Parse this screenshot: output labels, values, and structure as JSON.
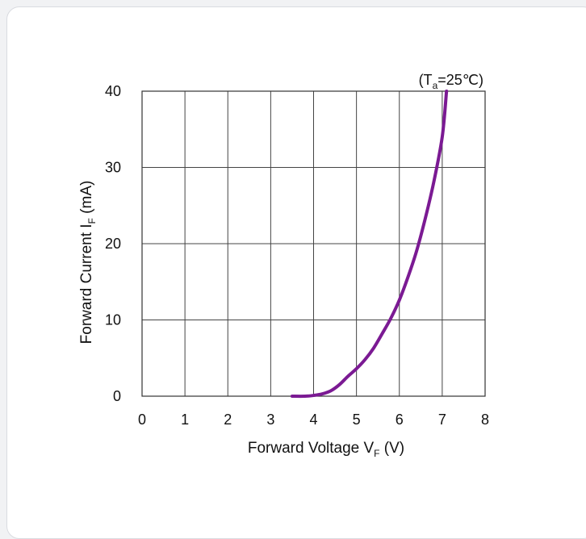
{
  "chart_data": {
    "type": "line",
    "title": "",
    "annotation": {
      "prefix": "(T",
      "sub": "a",
      "suffix": "=25℃)"
    },
    "xlabel": {
      "main": "Forward Voltage V",
      "sub": "F",
      "unit": " (V)"
    },
    "ylabel": {
      "main": "Forward Current I",
      "sub": "F",
      "unit": " (mA)"
    },
    "xlim": [
      0,
      8
    ],
    "ylim": [
      0,
      40
    ],
    "x_ticks": [
      "0",
      "1",
      "2",
      "3",
      "4",
      "5",
      "6",
      "7",
      "8"
    ],
    "y_ticks": [
      "0",
      "10",
      "20",
      "30",
      "40"
    ],
    "grid": true,
    "line_color": "#7b1a93",
    "series": [
      {
        "x": [
          3.5,
          3.8,
          4.0,
          4.2,
          4.4,
          4.6,
          4.8,
          5.0,
          5.2,
          5.4,
          5.6,
          5.8,
          6.0,
          6.2,
          6.4,
          6.6,
          6.8,
          7.0,
          7.1
        ],
        "y": [
          0,
          0,
          0.1,
          0.3,
          0.7,
          1.5,
          2.6,
          3.6,
          4.8,
          6.3,
          8.2,
          10.2,
          12.6,
          15.6,
          19.0,
          23.2,
          28.0,
          34.0,
          40.0
        ]
      }
    ]
  }
}
